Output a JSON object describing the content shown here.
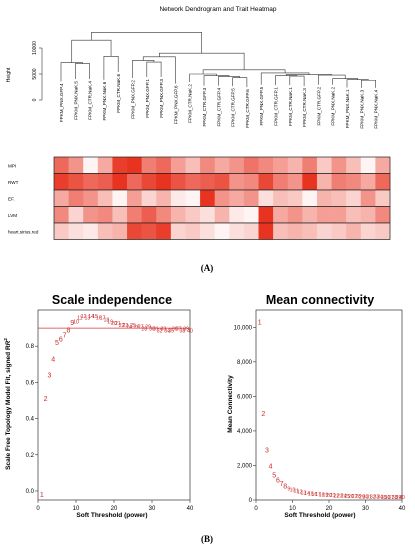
{
  "panel_a": {
    "title": "Network Dendrogram and Trait Heatmap",
    "height_label": "Height",
    "height_ticks": [
      "0",
      "5000",
      "10000"
    ],
    "leaves": [
      "FPKM_PNX.GFP.4",
      "FPKM_PNX.NaK.5",
      "FPKM_CTR.NaK.4",
      "FPKM_PNX.NaK.6",
      "FPKM_CTR.NaK.6",
      "FPKM_PNX.GFP.2",
      "FPKM_PNX.GFP.1",
      "FPKM_PNX.GFP.3",
      "FPKM_PNX.GFP.6",
      "FPKM_CTR.NaK.2",
      "FPKM_CTR.GFP.3",
      "FPKM_CTR.GFP.4",
      "FPKM_CTR.GFP.5",
      "FPKM_CTR.GFP.6",
      "FPKM_PNX.GFP.5",
      "FPKM_CTR.GFP.1",
      "FPKM_CTR.NaK.1",
      "FPKM_CTR.NaK.3",
      "FPKM_CTR.GFP.2",
      "FPKM_PNX.NaK.2",
      "FPKM_PNX.NaK.1",
      "FPKM_PNX.NaK.3",
      "FPKM_PNX.NaK.4"
    ],
    "traits": [
      "MPI",
      "RWT",
      "EF.",
      "LVM",
      "heart.sirius.red"
    ],
    "heatmap": [
      [
        0.7,
        0.5,
        0.05,
        0.4,
        0.9,
        0.95,
        0.6,
        0.7,
        0.45,
        0.3,
        0.55,
        0.4,
        0.5,
        0.65,
        0.55,
        0.45,
        0.35,
        0.6,
        0.25,
        0.5,
        0.3,
        0.05,
        0.4
      ],
      [
        0.9,
        0.8,
        0.7,
        0.75,
        0.95,
        0.7,
        0.85,
        0.95,
        0.8,
        0.7,
        0.75,
        0.8,
        0.5,
        0.55,
        0.85,
        0.6,
        0.5,
        0.95,
        0.35,
        0.6,
        0.55,
        0.4,
        0.7
      ],
      [
        0.4,
        0.6,
        0.5,
        0.3,
        0.05,
        0.45,
        0.2,
        0.35,
        0.1,
        0.05,
        0.95,
        0.5,
        0.4,
        0.5,
        0.15,
        0.3,
        0.25,
        0.05,
        0.35,
        0.3,
        0.2,
        0.5,
        0.25
      ],
      [
        0.55,
        0.2,
        0.5,
        0.55,
        0.3,
        0.6,
        0.75,
        0.55,
        0.35,
        0.25,
        0.15,
        0.35,
        0.1,
        0.05,
        0.95,
        0.4,
        0.5,
        0.35,
        0.45,
        0.45,
        0.3,
        0.35,
        0.55
      ],
      [
        0.25,
        0.15,
        0.1,
        0.3,
        0.35,
        0.85,
        0.8,
        0.9,
        0.2,
        0.25,
        0.15,
        0.05,
        0.15,
        0.2,
        0.95,
        0.3,
        0.35,
        0.3,
        0.2,
        0.25,
        0.35,
        0.2,
        0.25
      ]
    ],
    "label": "(A)"
  },
  "panel_b_label": "(B)",
  "chart_data": [
    {
      "type": "scatter",
      "title": "Scale independence",
      "xlabel": "Soft Threshold (power)",
      "ylabel": "Scale Free Topology Model Fit, signed R^2",
      "ylabel_main": "Scale Free Topology Model Fit, signed R",
      "ylabel_sup": "2",
      "xlim": [
        0,
        40
      ],
      "ylim": [
        -0.05,
        1.0
      ],
      "xticks": [
        "0",
        "10",
        "20",
        "30",
        "40"
      ],
      "yticks": [
        "0.0",
        "0.2",
        "0.4",
        "0.6",
        "0.8"
      ],
      "hline": 0.9,
      "x": [
        1,
        2,
        3,
        4,
        5,
        6,
        7,
        8,
        9,
        10,
        11,
        12,
        13,
        14,
        15,
        16,
        17,
        18,
        19,
        20,
        21,
        22,
        23,
        24,
        25,
        26,
        27,
        28,
        29,
        30,
        31,
        32,
        33,
        34,
        35,
        36,
        37,
        38,
        39,
        40
      ],
      "y": [
        -0.02,
        0.51,
        0.64,
        0.73,
        0.82,
        0.84,
        0.86,
        0.89,
        0.93,
        0.94,
        0.96,
        0.97,
        0.96,
        0.97,
        0.97,
        0.96,
        0.96,
        0.95,
        0.94,
        0.93,
        0.93,
        0.92,
        0.92,
        0.91,
        0.92,
        0.91,
        0.91,
        0.9,
        0.91,
        0.9,
        0.9,
        0.89,
        0.9,
        0.89,
        0.89,
        0.9,
        0.9,
        0.89,
        0.9,
        0.89
      ]
    },
    {
      "type": "scatter",
      "title": "Mean connectivity",
      "xlabel": "Soft Threshold (power)",
      "ylabel": "Mean Connectivity",
      "xlim": [
        0,
        40
      ],
      "ylim": [
        0,
        11000
      ],
      "xticks": [
        "0",
        "10",
        "20",
        "30",
        "40"
      ],
      "yticks": [
        "0",
        "2,000",
        "4,000",
        "6,000",
        "8,000",
        "10,000"
      ],
      "x": [
        1,
        2,
        3,
        4,
        5,
        6,
        7,
        8,
        9,
        10,
        11,
        12,
        13,
        14,
        15,
        16,
        17,
        18,
        19,
        20,
        21,
        22,
        23,
        24,
        25,
        26,
        27,
        28,
        29,
        30,
        31,
        32,
        33,
        34,
        35,
        36,
        37,
        38,
        39,
        40
      ],
      "y": [
        10300,
        5000,
        2900,
        1950,
        1450,
        1150,
        950,
        800,
        700,
        620,
        560,
        510,
        470,
        440,
        410,
        385,
        365,
        345,
        330,
        315,
        300,
        290,
        280,
        270,
        262,
        255,
        248,
        242,
        236,
        231,
        226,
        221,
        217,
        213,
        209,
        205,
        202,
        199,
        196,
        193
      ]
    }
  ]
}
